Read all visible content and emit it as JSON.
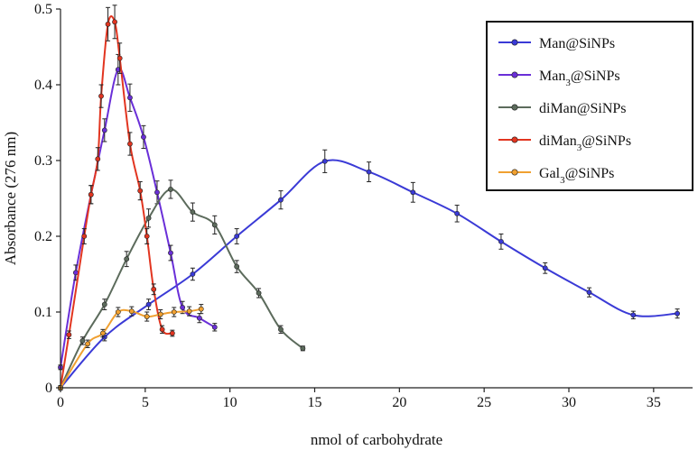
{
  "chart_data": {
    "type": "line",
    "title": "",
    "xlabel": "nmol of carbohydrate",
    "ylabel": "Absorbance (276 nm)",
    "xlim": [
      0,
      37.3
    ],
    "ylim": [
      0,
      0.5
    ],
    "xticks": [
      0,
      5,
      10,
      15,
      20,
      25,
      30,
      35
    ],
    "xtick_labels": [
      "0",
      "5",
      "10",
      "15",
      "20",
      "25",
      "30",
      "35"
    ],
    "yticks": [
      0,
      0.1,
      0.2,
      0.3,
      0.4,
      0.5
    ],
    "ytick_labels": [
      "0",
      "0.1",
      "0.2",
      "0.3",
      "0.4",
      "0.5"
    ],
    "grid": false,
    "legend_position": "top-right",
    "series": [
      {
        "name": "Man@SiNPs",
        "label_base": "Man@SiNPs",
        "label_sub": "",
        "label_tail": "",
        "color": "#3a3ad6",
        "x": [
          0,
          2.6,
          5.2,
          7.8,
          10.4,
          13.0,
          15.6,
          18.2,
          20.8,
          23.4,
          26.0,
          28.6,
          31.2,
          33.8,
          36.4
        ],
        "y": [
          0.0,
          0.067,
          0.11,
          0.15,
          0.2,
          0.248,
          0.299,
          0.285,
          0.258,
          0.23,
          0.193,
          0.158,
          0.126,
          0.096,
          0.098
        ],
        "err": [
          0.003,
          0.005,
          0.007,
          0.008,
          0.01,
          0.012,
          0.015,
          0.013,
          0.013,
          0.011,
          0.01,
          0.007,
          0.006,
          0.005,
          0.006
        ]
      },
      {
        "name": "Man3@SiNPs",
        "label_base": "Man",
        "label_sub": "3",
        "label_tail": "@SiNPs",
        "color": "#6a2fd8",
        "x": [
          0,
          0.9,
          1.8,
          2.6,
          3.4,
          4.1,
          4.9,
          5.7,
          6.5,
          7.2,
          8.2,
          9.1
        ],
        "y": [
          0.027,
          0.152,
          0.255,
          0.34,
          0.42,
          0.383,
          0.331,
          0.258,
          0.178,
          0.106,
          0.092,
          0.08
        ],
        "err": [
          0.003,
          0.01,
          0.012,
          0.015,
          0.02,
          0.018,
          0.015,
          0.015,
          0.01,
          0.008,
          0.006,
          0.005
        ]
      },
      {
        "name": "diMan@SiNPs",
        "label_base": "diMan@SiNPs",
        "label_sub": "",
        "label_tail": "",
        "color": "#5c6b5c",
        "x": [
          0,
          1.3,
          2.6,
          3.9,
          5.2,
          6.5,
          7.8,
          9.1,
          10.4,
          11.7,
          13.0,
          14.3
        ],
        "y": [
          0.0,
          0.062,
          0.11,
          0.17,
          0.224,
          0.262,
          0.232,
          0.215,
          0.16,
          0.125,
          0.077,
          0.052
        ],
        "err": [
          0.002,
          0.005,
          0.007,
          0.01,
          0.012,
          0.012,
          0.012,
          0.012,
          0.008,
          0.006,
          0.005,
          0.003
        ]
      },
      {
        "name": "diMan3@SiNPs",
        "label_base": "diMan",
        "label_sub": "3",
        "label_tail": "@SiNPs",
        "color": "#e23520",
        "x": [
          0,
          0.5,
          1.4,
          1.8,
          2.2,
          2.4,
          2.8,
          3.2,
          3.5,
          4.1,
          4.7,
          5.1,
          5.5,
          6.0,
          6.6
        ],
        "y": [
          0.0,
          0.07,
          0.2,
          0.255,
          0.302,
          0.385,
          0.48,
          0.483,
          0.435,
          0.322,
          0.26,
          0.2,
          0.13,
          0.077,
          0.072
        ],
        "err": [
          0.002,
          0.005,
          0.01,
          0.012,
          0.015,
          0.015,
          0.022,
          0.022,
          0.02,
          0.015,
          0.012,
          0.01,
          0.007,
          0.005,
          0.004
        ]
      },
      {
        "name": "Gal3@SiNPs",
        "label_base": "Gal",
        "label_sub": "3",
        "label_tail": "@SiNPs",
        "color": "#f0a030",
        "x": [
          0,
          1.6,
          2.5,
          3.4,
          4.2,
          5.1,
          5.9,
          6.7,
          7.6,
          8.3
        ],
        "y": [
          0.0,
          0.058,
          0.072,
          0.1,
          0.101,
          0.094,
          0.097,
          0.1,
          0.101,
          0.104
        ],
        "err": [
          0.002,
          0.005,
          0.005,
          0.006,
          0.006,
          0.006,
          0.006,
          0.006,
          0.006,
          0.006
        ]
      }
    ]
  }
}
